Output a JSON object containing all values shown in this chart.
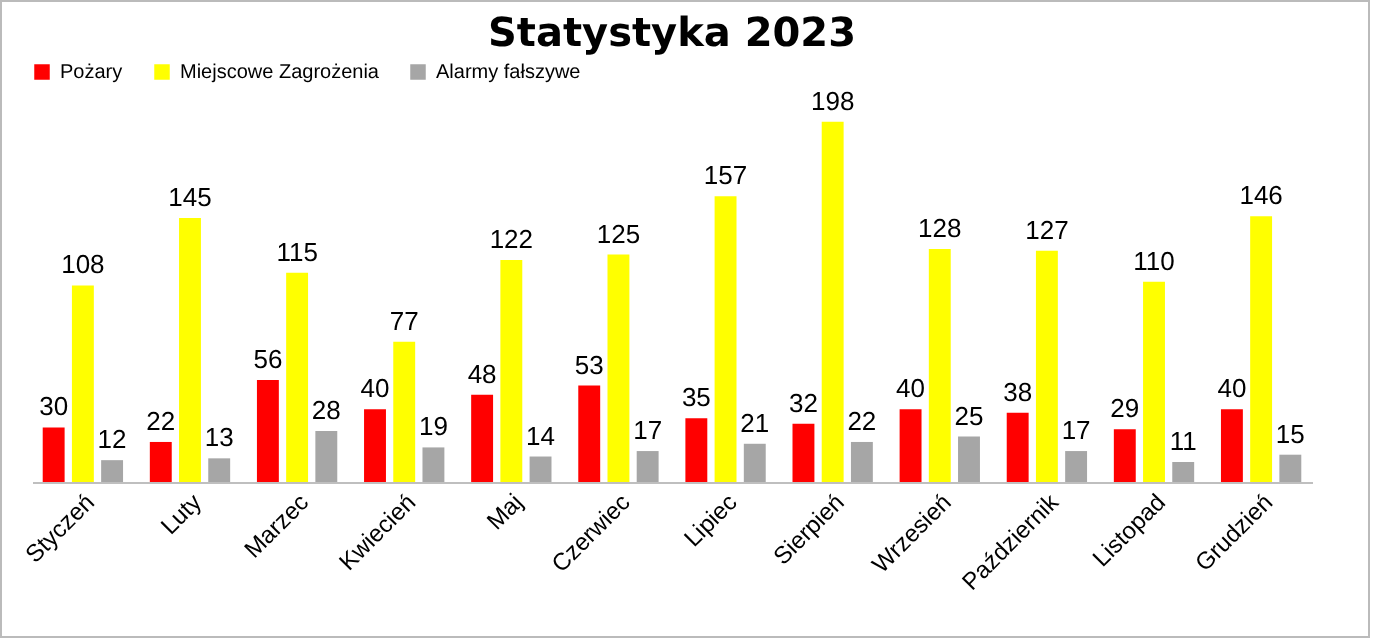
{
  "chart_data": {
    "type": "bar",
    "title": "Statystyka 2023",
    "categories": [
      "Styczeń",
      "Luty",
      "Marzec",
      "Kwiecień",
      "Maj",
      "Czerwiec",
      "Lipiec",
      "Sierpień",
      "Wrzesień",
      "Październik",
      "Listopad",
      "Grudzień"
    ],
    "series": [
      {
        "name": "Pożary",
        "color": "#ff0000",
        "values": [
          30,
          22,
          56,
          40,
          48,
          53,
          35,
          32,
          40,
          38,
          29,
          40
        ]
      },
      {
        "name": "Miejscowe Zagrożenia",
        "color": "#ffff00",
        "values": [
          108,
          145,
          115,
          77,
          122,
          125,
          157,
          198,
          128,
          127,
          110,
          146
        ]
      },
      {
        "name": "Alarmy fałszywe",
        "color": "#a6a6a6",
        "values": [
          12,
          13,
          28,
          19,
          14,
          17,
          21,
          22,
          25,
          17,
          11,
          15
        ]
      }
    ],
    "data_labels": true,
    "legend": "top",
    "grid": false
  }
}
